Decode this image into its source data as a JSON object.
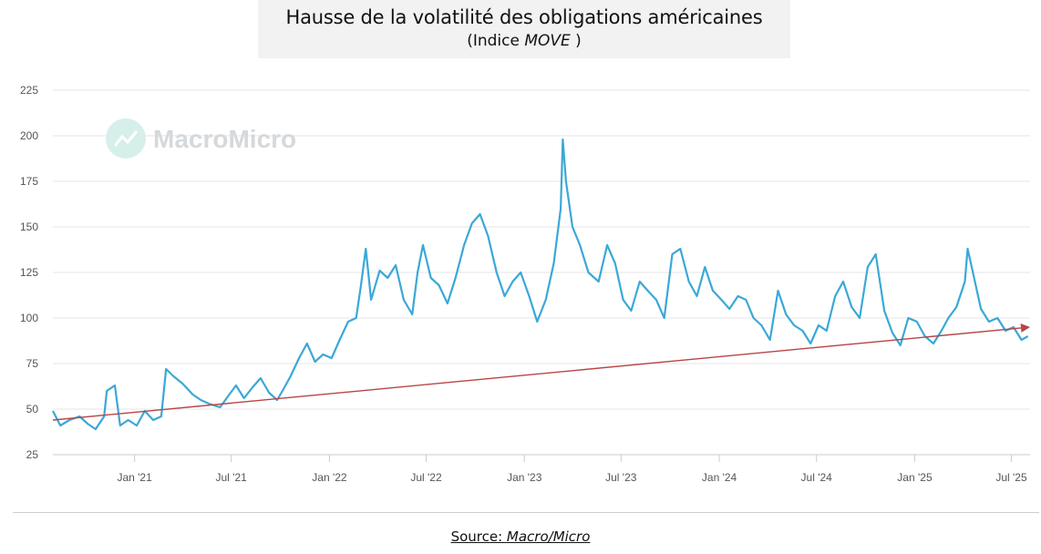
{
  "title": "Hausse de la volatilité des obligations américaines",
  "subtitle_prefix": "(Indice ",
  "subtitle_index": "MOVE",
  "subtitle_suffix": " )",
  "source_prefix": "Source: ",
  "source_name": "Macro/Micro",
  "watermark": "MacroMicro",
  "colors": {
    "line": "#3aa8d8",
    "trend": "#b84545",
    "grid": "#e4e4e4"
  },
  "chart_data": {
    "type": "line",
    "ylim": [
      25,
      225
    ],
    "yticks": [
      25,
      50,
      75,
      100,
      125,
      150,
      175,
      200,
      225
    ],
    "xlim": [
      "2020-08-01",
      "2025-08-05"
    ],
    "xticks": [
      {
        "date": "2021-01-01",
        "label": "Jan '21"
      },
      {
        "date": "2021-07-01",
        "label": "Jul '21"
      },
      {
        "date": "2022-01-01",
        "label": "Jan '22"
      },
      {
        "date": "2022-07-01",
        "label": "Jul '22"
      },
      {
        "date": "2023-01-01",
        "label": "Jan '23"
      },
      {
        "date": "2023-07-01",
        "label": "Jul '23"
      },
      {
        "date": "2024-01-01",
        "label": "Jan '24"
      },
      {
        "date": "2024-07-01",
        "label": "Jul '24"
      },
      {
        "date": "2025-01-01",
        "label": "Jan '25"
      },
      {
        "date": "2025-07-01",
        "label": "Jul '25"
      }
    ],
    "series": [
      {
        "values": [
          [
            "2020-08-01",
            49
          ],
          [
            "2020-08-15",
            41
          ],
          [
            "2020-09-01",
            44
          ],
          [
            "2020-09-20",
            46
          ],
          [
            "2020-10-05",
            42
          ],
          [
            "2020-10-20",
            39
          ],
          [
            "2020-11-05",
            46
          ],
          [
            "2020-11-10",
            60
          ],
          [
            "2020-11-25",
            63
          ],
          [
            "2020-12-05",
            41
          ],
          [
            "2020-12-20",
            44
          ],
          [
            "2021-01-05",
            41
          ],
          [
            "2021-01-20",
            49
          ],
          [
            "2021-02-05",
            44
          ],
          [
            "2021-02-20",
            46
          ],
          [
            "2021-03-01",
            72
          ],
          [
            "2021-03-15",
            68
          ],
          [
            "2021-04-01",
            64
          ],
          [
            "2021-04-20",
            58
          ],
          [
            "2021-05-05",
            55
          ],
          [
            "2021-05-20",
            53
          ],
          [
            "2021-06-10",
            51
          ],
          [
            "2021-06-25",
            57
          ],
          [
            "2021-07-10",
            63
          ],
          [
            "2021-07-25",
            56
          ],
          [
            "2021-08-10",
            62
          ],
          [
            "2021-08-25",
            67
          ],
          [
            "2021-09-10",
            59
          ],
          [
            "2021-09-25",
            55
          ],
          [
            "2021-10-05",
            60
          ],
          [
            "2021-10-20",
            68
          ],
          [
            "2021-11-05",
            78
          ],
          [
            "2021-11-20",
            86
          ],
          [
            "2021-12-05",
            76
          ],
          [
            "2021-12-20",
            80
          ],
          [
            "2022-01-05",
            78
          ],
          [
            "2022-01-20",
            88
          ],
          [
            "2022-02-05",
            98
          ],
          [
            "2022-02-20",
            100
          ],
          [
            "2022-03-01",
            118
          ],
          [
            "2022-03-10",
            138
          ],
          [
            "2022-03-20",
            110
          ],
          [
            "2022-04-05",
            126
          ],
          [
            "2022-04-20",
            122
          ],
          [
            "2022-05-05",
            129
          ],
          [
            "2022-05-20",
            110
          ],
          [
            "2022-06-05",
            102
          ],
          [
            "2022-06-15",
            125
          ],
          [
            "2022-06-25",
            140
          ],
          [
            "2022-07-10",
            122
          ],
          [
            "2022-07-25",
            118
          ],
          [
            "2022-08-10",
            108
          ],
          [
            "2022-08-25",
            122
          ],
          [
            "2022-09-10",
            140
          ],
          [
            "2022-09-25",
            152
          ],
          [
            "2022-10-10",
            157
          ],
          [
            "2022-10-25",
            145
          ],
          [
            "2022-11-10",
            125
          ],
          [
            "2022-11-25",
            112
          ],
          [
            "2022-12-10",
            120
          ],
          [
            "2022-12-25",
            125
          ],
          [
            "2023-01-10",
            112
          ],
          [
            "2023-01-25",
            98
          ],
          [
            "2023-02-10",
            110
          ],
          [
            "2023-02-25",
            130
          ],
          [
            "2023-03-10",
            160
          ],
          [
            "2023-03-14",
            198
          ],
          [
            "2023-03-20",
            175
          ],
          [
            "2023-04-01",
            150
          ],
          [
            "2023-04-15",
            140
          ],
          [
            "2023-05-01",
            125
          ],
          [
            "2023-05-20",
            120
          ],
          [
            "2023-06-05",
            140
          ],
          [
            "2023-06-20",
            130
          ],
          [
            "2023-07-05",
            110
          ],
          [
            "2023-07-20",
            104
          ],
          [
            "2023-08-05",
            120
          ],
          [
            "2023-08-20",
            115
          ],
          [
            "2023-09-05",
            110
          ],
          [
            "2023-09-20",
            100
          ],
          [
            "2023-10-05",
            135
          ],
          [
            "2023-10-20",
            138
          ],
          [
            "2023-11-05",
            120
          ],
          [
            "2023-11-20",
            112
          ],
          [
            "2023-12-05",
            128
          ],
          [
            "2023-12-20",
            115
          ],
          [
            "2024-01-05",
            110
          ],
          [
            "2024-01-20",
            105
          ],
          [
            "2024-02-05",
            112
          ],
          [
            "2024-02-20",
            110
          ],
          [
            "2024-03-05",
            100
          ],
          [
            "2024-03-20",
            96
          ],
          [
            "2024-04-05",
            88
          ],
          [
            "2024-04-20",
            115
          ],
          [
            "2024-05-05",
            102
          ],
          [
            "2024-05-20",
            96
          ],
          [
            "2024-06-05",
            93
          ],
          [
            "2024-06-20",
            86
          ],
          [
            "2024-07-05",
            96
          ],
          [
            "2024-07-20",
            93
          ],
          [
            "2024-08-05",
            112
          ],
          [
            "2024-08-20",
            120
          ],
          [
            "2024-09-05",
            106
          ],
          [
            "2024-09-20",
            100
          ],
          [
            "2024-10-05",
            128
          ],
          [
            "2024-10-20",
            135
          ],
          [
            "2024-11-05",
            104
          ],
          [
            "2024-11-20",
            92
          ],
          [
            "2024-12-05",
            85
          ],
          [
            "2024-12-20",
            100
          ],
          [
            "2025-01-05",
            98
          ],
          [
            "2025-01-20",
            90
          ],
          [
            "2025-02-05",
            86
          ],
          [
            "2025-02-20",
            93
          ],
          [
            "2025-03-05",
            100
          ],
          [
            "2025-03-20",
            106
          ],
          [
            "2025-04-05",
            120
          ],
          [
            "2025-04-10",
            138
          ],
          [
            "2025-04-20",
            125
          ],
          [
            "2025-05-05",
            105
          ],
          [
            "2025-05-20",
            98
          ],
          [
            "2025-06-05",
            100
          ],
          [
            "2025-06-20",
            93
          ],
          [
            "2025-07-05",
            95
          ],
          [
            "2025-07-20",
            88
          ],
          [
            "2025-08-01",
            90
          ]
        ]
      }
    ],
    "trendline": {
      "from": [
        "2020-08-01",
        44
      ],
      "to": [
        "2025-08-05",
        95
      ]
    }
  }
}
